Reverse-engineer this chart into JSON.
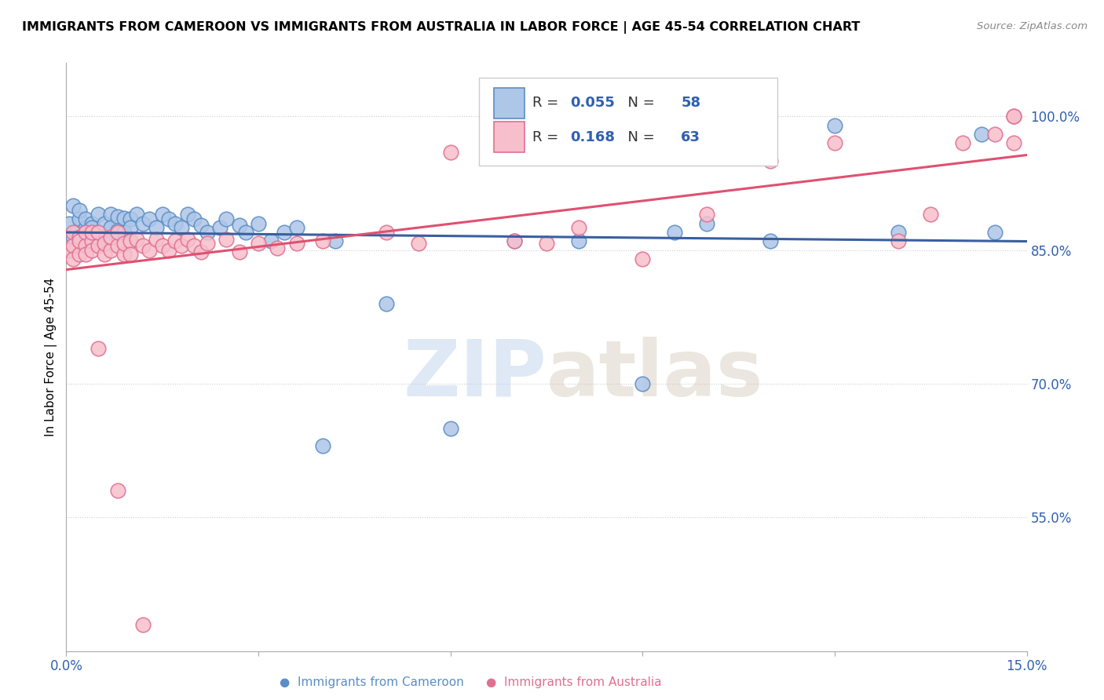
{
  "title": "IMMIGRANTS FROM CAMEROON VS IMMIGRANTS FROM AUSTRALIA IN LABOR FORCE | AGE 45-54 CORRELATION CHART",
  "source": "Source: ZipAtlas.com",
  "ylabel": "In Labor Force | Age 45-54",
  "xlim": [
    0.0,
    0.15
  ],
  "ylim": [
    0.4,
    1.06
  ],
  "cameroon_R": 0.055,
  "cameroon_N": 58,
  "australia_R": 0.168,
  "australia_N": 63,
  "cameroon_color": "#aec6e8",
  "cameroon_edge": "#5b8ec4",
  "australia_color": "#f7bfcc",
  "australia_edge": "#e07090",
  "trendline_cameroon_color": "#3a5fa0",
  "trendline_australia_color": "#e05070",
  "watermark": "ZIPatlas",
  "cam_x": [
    0.0005,
    0.001,
    0.001,
    0.0015,
    0.002,
    0.002,
    0.002,
    0.003,
    0.003,
    0.003,
    0.004,
    0.004,
    0.005,
    0.005,
    0.006,
    0.006,
    0.007,
    0.007,
    0.008,
    0.008,
    0.009,
    0.009,
    0.01,
    0.01,
    0.011,
    0.012,
    0.013,
    0.014,
    0.015,
    0.016,
    0.017,
    0.018,
    0.019,
    0.02,
    0.021,
    0.022,
    0.024,
    0.025,
    0.027,
    0.028,
    0.03,
    0.032,
    0.034,
    0.036,
    0.04,
    0.042,
    0.05,
    0.06,
    0.07,
    0.08,
    0.09,
    0.095,
    0.1,
    0.11,
    0.12,
    0.13,
    0.143,
    0.145
  ],
  "cam_y": [
    0.88,
    0.865,
    0.9,
    0.87,
    0.885,
    0.86,
    0.895,
    0.875,
    0.885,
    0.87,
    0.88,
    0.875,
    0.89,
    0.87,
    0.88,
    0.865,
    0.89,
    0.875,
    0.888,
    0.872,
    0.886,
    0.87,
    0.885,
    0.875,
    0.89,
    0.88,
    0.885,
    0.875,
    0.89,
    0.885,
    0.88,
    0.875,
    0.89,
    0.885,
    0.878,
    0.87,
    0.875,
    0.885,
    0.878,
    0.87,
    0.88,
    0.86,
    0.87,
    0.875,
    0.63,
    0.86,
    0.79,
    0.65,
    0.86,
    0.86,
    0.7,
    0.87,
    0.88,
    0.86,
    0.99,
    0.87,
    0.98,
    0.87
  ],
  "aus_x": [
    0.0005,
    0.001,
    0.001,
    0.001,
    0.002,
    0.002,
    0.002,
    0.003,
    0.003,
    0.003,
    0.004,
    0.004,
    0.004,
    0.005,
    0.005,
    0.006,
    0.006,
    0.007,
    0.007,
    0.008,
    0.008,
    0.009,
    0.009,
    0.01,
    0.01,
    0.011,
    0.012,
    0.013,
    0.014,
    0.015,
    0.016,
    0.017,
    0.018,
    0.019,
    0.02,
    0.021,
    0.022,
    0.025,
    0.027,
    0.03,
    0.033,
    0.036,
    0.04,
    0.05,
    0.055,
    0.06,
    0.07,
    0.075,
    0.08,
    0.09,
    0.1,
    0.11,
    0.12,
    0.13,
    0.135,
    0.14,
    0.145,
    0.148,
    0.148,
    0.148,
    0.005,
    0.008,
    0.012
  ],
  "aus_y": [
    0.85,
    0.87,
    0.855,
    0.84,
    0.865,
    0.845,
    0.86,
    0.855,
    0.87,
    0.845,
    0.86,
    0.85,
    0.87,
    0.855,
    0.87,
    0.845,
    0.858,
    0.85,
    0.865,
    0.855,
    0.87,
    0.845,
    0.858,
    0.86,
    0.845,
    0.862,
    0.855,
    0.85,
    0.862,
    0.855,
    0.85,
    0.86,
    0.855,
    0.862,
    0.855,
    0.848,
    0.858,
    0.862,
    0.848,
    0.858,
    0.852,
    0.858,
    0.86,
    0.87,
    0.858,
    0.96,
    0.86,
    0.858,
    0.875,
    0.84,
    0.89,
    0.95,
    0.97,
    0.86,
    0.89,
    0.97,
    0.98,
    0.97,
    1.0,
    1.0,
    0.74,
    0.58,
    0.43
  ]
}
